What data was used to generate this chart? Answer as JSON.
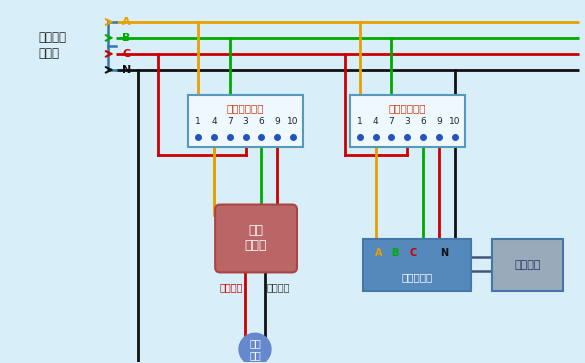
{
  "bg_color": "#d8eef8",
  "wire_colors": {
    "A": "#e8a000",
    "B": "#00aa00",
    "C": "#cc0000",
    "N": "#111111"
  },
  "left_label_line1": "国家电网",
  "left_label_line2": "三相电",
  "meter1_title": "三相双向电表",
  "meter2_title": "三相单向电表",
  "meter_terminals": [
    "1",
    "4",
    "7",
    "3",
    "6",
    "9",
    "10"
  ],
  "box_user_label": "用户\n配电柜",
  "box_inverter_label": "三相逆变器",
  "box_pv_label": "光伏电站",
  "load_fire": "负载火线",
  "load_neutral": "负载零线",
  "user_load": "用户\n负载",
  "font": "SimHei"
}
